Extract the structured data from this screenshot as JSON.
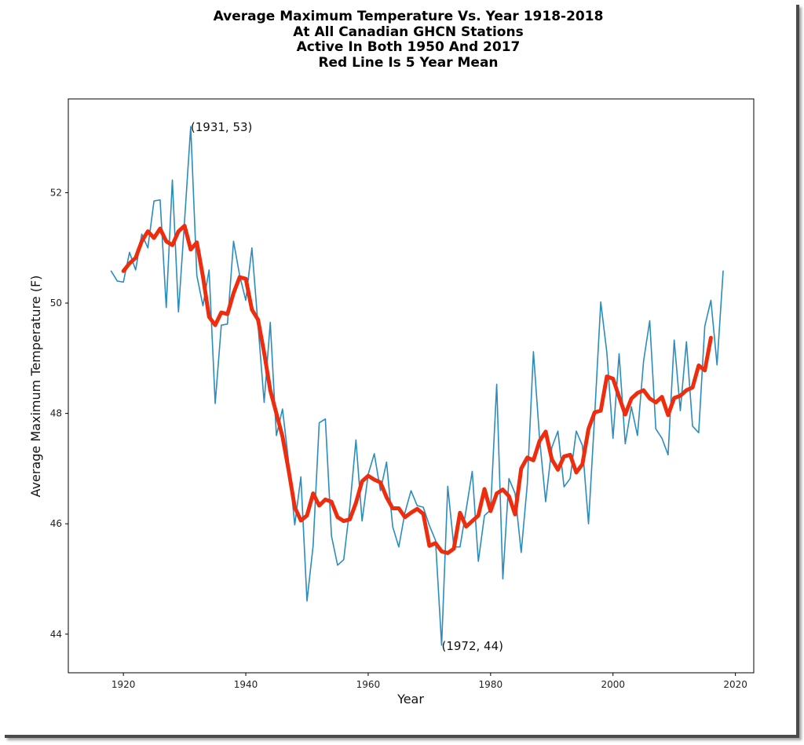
{
  "chart_data": {
    "type": "line",
    "title_lines": [
      "Average Maximum Temperature Vs. Year 1918-2018",
      "At All Canadian GHCN Stations",
      "Active In Both 1950 And 2017",
      "Red Line Is 5 Year Mean"
    ],
    "xlabel": "Year",
    "ylabel": "Average Maximum Temperature (F)",
    "xlim": [
      1911,
      2023
    ],
    "ylim": [
      43.3,
      53.7
    ],
    "xticks": [
      1920,
      1940,
      1960,
      1980,
      2000,
      2020
    ],
    "yticks": [
      44,
      46,
      48,
      50,
      52
    ],
    "grid": false,
    "series": [
      {
        "color": "#2b8cbe",
        "x": [
          1918,
          1919,
          1920,
          1921,
          1922,
          1923,
          1924,
          1925,
          1926,
          1927,
          1928,
          1929,
          1930,
          1931,
          1932,
          1933,
          1934,
          1935,
          1936,
          1937,
          1938,
          1939,
          1940,
          1941,
          1942,
          1943,
          1944,
          1945,
          1946,
          1947,
          1948,
          1949,
          1950,
          1951,
          1952,
          1953,
          1954,
          1955,
          1956,
          1957,
          1958,
          1959,
          1960,
          1961,
          1962,
          1963,
          1964,
          1965,
          1966,
          1967,
          1968,
          1969,
          1970,
          1971,
          1972,
          1973,
          1974,
          1975,
          1976,
          1977,
          1978,
          1979,
          1980,
          1981,
          1982,
          1983,
          1984,
          1985,
          1986,
          1987,
          1988,
          1989,
          1990,
          1991,
          1992,
          1993,
          1994,
          1995,
          1996,
          1997,
          1998,
          1999,
          2000,
          2001,
          2002,
          2003,
          2004,
          2005,
          2006,
          2007,
          2008,
          2009,
          2010,
          2011,
          2012,
          2013,
          2014,
          2015,
          2016,
          2017,
          2018
        ],
        "values": [
          50.58,
          50.4,
          50.38,
          50.92,
          50.6,
          51.25,
          51.0,
          51.85,
          51.87,
          49.92,
          52.23,
          49.84,
          51.5,
          53.2,
          50.5,
          49.95,
          50.6,
          48.18,
          49.6,
          49.62,
          51.12,
          50.5,
          50.05,
          51.0,
          49.6,
          48.2,
          49.65,
          47.6,
          48.08,
          47.12,
          45.98,
          46.85,
          44.6,
          45.6,
          47.83,
          47.9,
          45.78,
          45.25,
          45.35,
          46.3,
          47.52,
          46.05,
          46.9,
          47.27,
          46.6,
          47.12,
          45.95,
          45.58,
          46.2,
          46.6,
          46.33,
          46.3,
          45.97,
          45.7,
          43.8,
          46.68,
          45.58,
          45.58,
          46.25,
          46.95,
          45.32,
          46.15,
          46.25,
          48.53,
          45.0,
          46.82,
          46.55,
          45.48,
          46.72,
          49.12,
          47.55,
          46.4,
          47.38,
          47.68,
          46.67,
          46.82,
          47.68,
          47.42,
          46.0,
          47.95,
          50.02,
          49.1,
          47.55,
          49.08,
          47.45,
          48.12,
          47.6,
          48.95,
          49.68,
          47.72,
          47.55,
          47.25,
          49.33,
          48.05,
          49.3,
          47.77,
          47.65,
          49.58,
          50.05,
          48.88,
          50.58
        ]
      },
      {
        "color": "#ee2c0e",
        "x": [
          1920,
          1921,
          1922,
          1923,
          1924,
          1925,
          1926,
          1927,
          1928,
          1929,
          1930,
          1931,
          1932,
          1933,
          1934,
          1935,
          1936,
          1937,
          1938,
          1939,
          1940,
          1941,
          1942,
          1943,
          1944,
          1945,
          1946,
          1947,
          1948,
          1949,
          1950,
          1951,
          1952,
          1953,
          1954,
          1955,
          1956,
          1957,
          1958,
          1959,
          1960,
          1961,
          1962,
          1963,
          1964,
          1965,
          1966,
          1967,
          1968,
          1969,
          1970,
          1971,
          1972,
          1973,
          1974,
          1975,
          1976,
          1977,
          1978,
          1979,
          1980,
          1981,
          1982,
          1983,
          1984,
          1985,
          1986,
          1987,
          1988,
          1989,
          1990,
          1991,
          1992,
          1993,
          1994,
          1995,
          1996,
          1997,
          1998,
          1999,
          2000,
          2001,
          2002,
          2003,
          2004,
          2005,
          2006,
          2007,
          2008,
          2009,
          2010,
          2011,
          2012,
          2013,
          2014,
          2015,
          2016
        ],
        "values": [
          50.58,
          50.72,
          50.82,
          51.12,
          51.3,
          51.18,
          51.35,
          51.12,
          51.05,
          51.3,
          51.4,
          50.97,
          51.1,
          50.48,
          49.75,
          49.6,
          49.83,
          49.8,
          50.18,
          50.47,
          50.44,
          49.88,
          49.7,
          49.1,
          48.42,
          48.0,
          47.58,
          46.97,
          46.3,
          46.06,
          46.15,
          46.55,
          46.33,
          46.44,
          46.4,
          46.12,
          46.05,
          46.08,
          46.38,
          46.77,
          46.87,
          46.8,
          46.75,
          46.48,
          46.28,
          46.28,
          46.12,
          46.2,
          46.27,
          46.18,
          45.6,
          45.65,
          45.5,
          45.47,
          45.55,
          46.2,
          45.95,
          46.05,
          46.15,
          46.63,
          46.23,
          46.55,
          46.62,
          46.5,
          46.17,
          47.0,
          47.2,
          47.15,
          47.5,
          47.67,
          47.17,
          46.98,
          47.22,
          47.25,
          46.93,
          47.08,
          47.72,
          48.02,
          48.05,
          48.67,
          48.63,
          48.3,
          47.98,
          48.27,
          48.37,
          48.42,
          48.27,
          48.2,
          48.3,
          47.97,
          48.28,
          48.32,
          48.42,
          48.47,
          48.87,
          48.78,
          49.37
        ]
      }
    ],
    "annotations": [
      {
        "text": "(1931, 53)",
        "x": 1931,
        "y": 53.2
      },
      {
        "text": "(1972, 44)",
        "x": 1972,
        "y": 43.8
      }
    ]
  }
}
